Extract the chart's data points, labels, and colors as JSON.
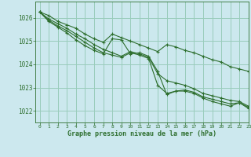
{
  "title": "Graphe pression niveau de la mer (hPa)",
  "background_color": "#cce8ee",
  "grid_color": "#99ccbb",
  "line_color": "#2d6e2d",
  "text_color": "#2d6e2d",
  "xlim": [
    -0.5,
    23
  ],
  "ylim": [
    1021.5,
    1026.7
  ],
  "yticks": [
    1022,
    1023,
    1024,
    1025,
    1026
  ],
  "xticks": [
    0,
    1,
    2,
    3,
    4,
    5,
    6,
    7,
    8,
    9,
    10,
    11,
    12,
    13,
    14,
    15,
    16,
    17,
    18,
    19,
    20,
    21,
    22,
    23
  ],
  "series": [
    [
      1026.25,
      1026.1,
      1025.85,
      1025.7,
      1025.55,
      1025.3,
      1025.1,
      1024.95,
      1025.3,
      1025.15,
      1025.0,
      1024.85,
      1024.7,
      1024.55,
      1024.85,
      1024.75,
      1024.6,
      1024.5,
      1024.35,
      1024.2,
      1024.1,
      1023.9,
      1023.8,
      1023.7
    ],
    [
      1026.25,
      1025.95,
      1025.75,
      1025.55,
      1025.3,
      1025.1,
      1024.85,
      1024.65,
      1024.5,
      1024.35,
      1024.55,
      1024.45,
      1024.3,
      1023.6,
      1023.3,
      1023.2,
      1023.1,
      1022.95,
      1022.75,
      1022.65,
      1022.55,
      1022.45,
      1022.4,
      1022.2
    ],
    [
      1026.25,
      1025.9,
      1025.65,
      1025.45,
      1025.2,
      1024.95,
      1024.7,
      1024.5,
      1024.4,
      1024.3,
      1024.5,
      1024.4,
      1024.25,
      1023.1,
      1022.75,
      1022.85,
      1022.9,
      1022.8,
      1022.6,
      1022.5,
      1022.4,
      1022.3,
      1022.35,
      1022.15
    ],
    [
      1026.25,
      1025.85,
      1025.6,
      1025.35,
      1025.05,
      1024.8,
      1024.6,
      1024.45,
      1025.1,
      1025.05,
      1024.45,
      1024.5,
      1024.35,
      1023.7,
      1022.7,
      1022.85,
      1022.85,
      1022.75,
      1022.55,
      1022.4,
      1022.3,
      1022.2,
      1022.35,
      1022.1
    ]
  ]
}
